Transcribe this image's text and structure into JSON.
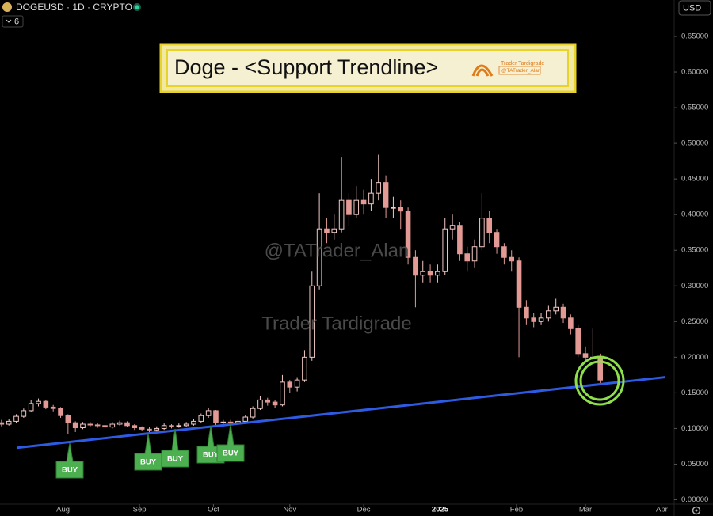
{
  "header": {
    "symbol": "DOGEUSD · 1D · CRYPTO",
    "indicators": "6",
    "currency": "USD"
  },
  "banner": {
    "title": "Doge - <Support Trendline>",
    "brand": "Trader Tardigrade",
    "handle": "@TATrader_Alan"
  },
  "watermarks": [
    "@TATrader_Alan",
    "Trader Tardigrade"
  ],
  "chart_data": {
    "type": "candlestick",
    "up_color": "#f2c9c5",
    "down_color": "#e39a95",
    "xlim": [
      -0.2,
      91
    ],
    "xticks": [
      {
        "value": 8.33,
        "label": "Aug"
      },
      {
        "value": 18.67,
        "label": "Sep"
      },
      {
        "value": 28.67,
        "label": "Oct"
      },
      {
        "value": 39,
        "label": "Nov"
      },
      {
        "value": 49,
        "label": "Dec"
      },
      {
        "value": 59.33,
        "label": "2025"
      },
      {
        "value": 69.67,
        "label": "Feb"
      },
      {
        "value": 79,
        "label": "Mar"
      },
      {
        "value": 89.33,
        "label": "Apr"
      }
    ],
    "ylim": [
      0,
      0.7
    ],
    "yticks": [
      {
        "value": 0,
        "label": "0.00000"
      },
      {
        "value": 0.05,
        "label": "0.05000"
      },
      {
        "value": 0.1,
        "label": "0.10000"
      },
      {
        "value": 0.15,
        "label": "0.15000"
      },
      {
        "value": 0.2,
        "label": "0.20000"
      },
      {
        "value": 0.25,
        "label": "0.25000"
      },
      {
        "value": 0.3,
        "label": "0.30000"
      },
      {
        "value": 0.35,
        "label": "0.35000"
      },
      {
        "value": 0.4,
        "label": "0.40000"
      },
      {
        "value": 0.45,
        "label": "0.45000"
      },
      {
        "value": 0.5,
        "label": "0.50000"
      },
      {
        "value": 0.55,
        "label": "0.55000"
      },
      {
        "value": 0.6,
        "label": "0.60000"
      },
      {
        "value": 0.65,
        "label": "0.65000"
      }
    ],
    "open": [
      0.108,
      0.106,
      0.11,
      0.117,
      0.125,
      0.135,
      0.138,
      0.13,
      0.128,
      0.118,
      0.108,
      0.101,
      0.106,
      0.105,
      0.104,
      0.102,
      0.106,
      0.108,
      0.104,
      0.101,
      0.099,
      0.098,
      0.1,
      0.104,
      0.103,
      0.104,
      0.106,
      0.11,
      0.118,
      0.125,
      0.108,
      0.109,
      0.108,
      0.11,
      0.116,
      0.128,
      0.14,
      0.137,
      0.133,
      0.165,
      0.158,
      0.168,
      0.2,
      0.3,
      0.38,
      0.375,
      0.38,
      0.42,
      0.4,
      0.42,
      0.415,
      0.43,
      0.445,
      0.41,
      0.41,
      0.405,
      0.34,
      0.315,
      0.32,
      0.315,
      0.32,
      0.38,
      0.385,
      0.345,
      0.335,
      0.355,
      0.395,
      0.375,
      0.355,
      0.34,
      0.335,
      0.27,
      0.255,
      0.25,
      0.255,
      0.265,
      0.27,
      0.255,
      0.24,
      0.205,
      0.2,
      0.2
    ],
    "high": [
      0.112,
      0.113,
      0.12,
      0.128,
      0.14,
      0.142,
      0.14,
      0.133,
      0.13,
      0.12,
      0.11,
      0.109,
      0.109,
      0.108,
      0.106,
      0.109,
      0.111,
      0.11,
      0.106,
      0.103,
      0.102,
      0.103,
      0.107,
      0.106,
      0.107,
      0.109,
      0.113,
      0.121,
      0.129,
      0.126,
      0.112,
      0.112,
      0.113,
      0.119,
      0.131,
      0.145,
      0.143,
      0.14,
      0.175,
      0.168,
      0.172,
      0.21,
      0.32,
      0.43,
      0.395,
      0.4,
      0.48,
      0.43,
      0.44,
      0.435,
      0.45,
      0.484,
      0.455,
      0.425,
      0.42,
      0.41,
      0.35,
      0.335,
      0.33,
      0.33,
      0.395,
      0.4,
      0.39,
      0.355,
      0.365,
      0.43,
      0.405,
      0.38,
      0.36,
      0.35,
      0.34,
      0.28,
      0.262,
      0.262,
      0.272,
      0.282,
      0.275,
      0.26,
      0.245,
      0.215,
      0.24,
      0.205
    ],
    "low": [
      0.103,
      0.104,
      0.108,
      0.115,
      0.123,
      0.131,
      0.127,
      0.124,
      0.115,
      0.092,
      0.095,
      0.099,
      0.102,
      0.101,
      0.099,
      0.1,
      0.104,
      0.102,
      0.098,
      0.096,
      0.093,
      0.095,
      0.098,
      0.1,
      0.101,
      0.102,
      0.104,
      0.108,
      0.115,
      0.104,
      0.103,
      0.104,
      0.105,
      0.108,
      0.114,
      0.126,
      0.132,
      0.129,
      0.131,
      0.15,
      0.152,
      0.165,
      0.195,
      0.295,
      0.36,
      0.365,
      0.375,
      0.385,
      0.395,
      0.4,
      0.405,
      0.42,
      0.395,
      0.395,
      0.38,
      0.33,
      0.27,
      0.305,
      0.305,
      0.305,
      0.315,
      0.365,
      0.335,
      0.32,
      0.325,
      0.35,
      0.36,
      0.345,
      0.33,
      0.32,
      0.2,
      0.245,
      0.242,
      0.245,
      0.25,
      0.26,
      0.248,
      0.232,
      0.2,
      0.195,
      0.195,
      0.163
    ],
    "close": [
      0.106,
      0.11,
      0.117,
      0.125,
      0.135,
      0.138,
      0.13,
      0.128,
      0.118,
      0.108,
      0.101,
      0.106,
      0.105,
      0.104,
      0.102,
      0.106,
      0.108,
      0.104,
      0.101,
      0.099,
      0.098,
      0.1,
      0.104,
      0.103,
      0.104,
      0.106,
      0.11,
      0.118,
      0.125,
      0.108,
      0.109,
      0.108,
      0.11,
      0.116,
      0.128,
      0.14,
      0.137,
      0.133,
      0.165,
      0.158,
      0.168,
      0.2,
      0.3,
      0.38,
      0.375,
      0.38,
      0.42,
      0.4,
      0.42,
      0.415,
      0.43,
      0.445,
      0.41,
      0.41,
      0.405,
      0.34,
      0.315,
      0.32,
      0.315,
      0.32,
      0.38,
      0.385,
      0.345,
      0.335,
      0.355,
      0.395,
      0.375,
      0.355,
      0.34,
      0.335,
      0.27,
      0.255,
      0.25,
      0.255,
      0.265,
      0.27,
      0.255,
      0.24,
      0.205,
      0.2,
      0.2,
      0.168
    ],
    "trendline": {
      "x": [
        2.1,
        89.8
      ],
      "y": [
        0.073,
        0.172
      ],
      "color": "#2d5be3"
    },
    "annotations": [
      "BUY",
      "BUY",
      "BUY",
      "BUY",
      "BUY"
    ]
  }
}
